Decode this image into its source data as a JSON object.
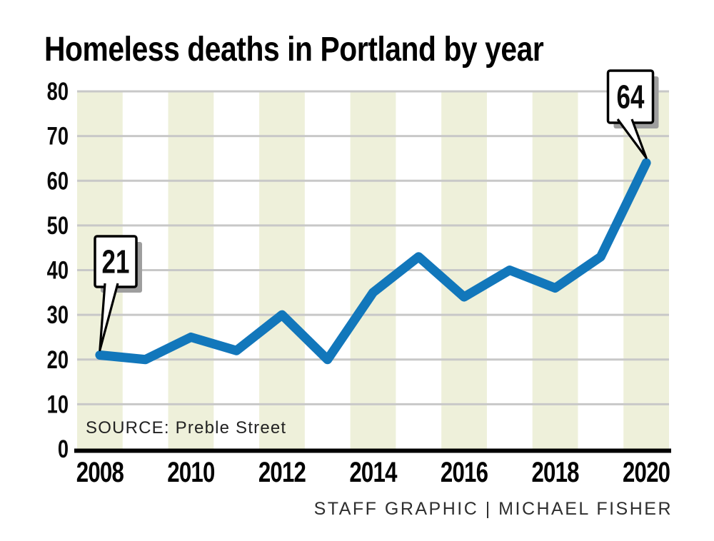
{
  "title": "Homeless deaths in Portland by year",
  "source": "SOURCE: Preble Street",
  "credit": "STAFF GRAPHIC | MICHAEL FISHER",
  "colors": {
    "line": "#1277bb",
    "band": "#eef0da",
    "gridline": "#c8c8c8",
    "axis": "#000000",
    "callout_fill": "#ffffff",
    "callout_border": "#000000",
    "callout_shadow": "#9e9e9e"
  },
  "chart_data": {
    "type": "line",
    "title": "Homeless deaths in Portland by year",
    "x": [
      2008,
      2009,
      2010,
      2011,
      2012,
      2013,
      2014,
      2015,
      2016,
      2017,
      2018,
      2019,
      2020
    ],
    "values": [
      21,
      20,
      25,
      22,
      30,
      20,
      35,
      43,
      34,
      40,
      36,
      43,
      64
    ],
    "xlabel": "",
    "ylabel": "",
    "ylim": [
      0,
      80
    ],
    "ytick_labels": [
      "0",
      "10",
      "20",
      "30",
      "40",
      "50",
      "60",
      "70",
      "80"
    ],
    "xtick_labels": [
      "2008",
      "2010",
      "2012",
      "2014",
      "2016",
      "2018",
      "2020"
    ],
    "grid": "horizontal gridlines with alternating vertical year bands",
    "legend": "none",
    "annotations": [
      {
        "x": 2008,
        "value": 21,
        "label": "21"
      },
      {
        "x": 2020,
        "value": 64,
        "label": "64"
      }
    ],
    "source": "SOURCE: Preble Street",
    "credit": "STAFF GRAPHIC | MICHAEL FISHER"
  }
}
